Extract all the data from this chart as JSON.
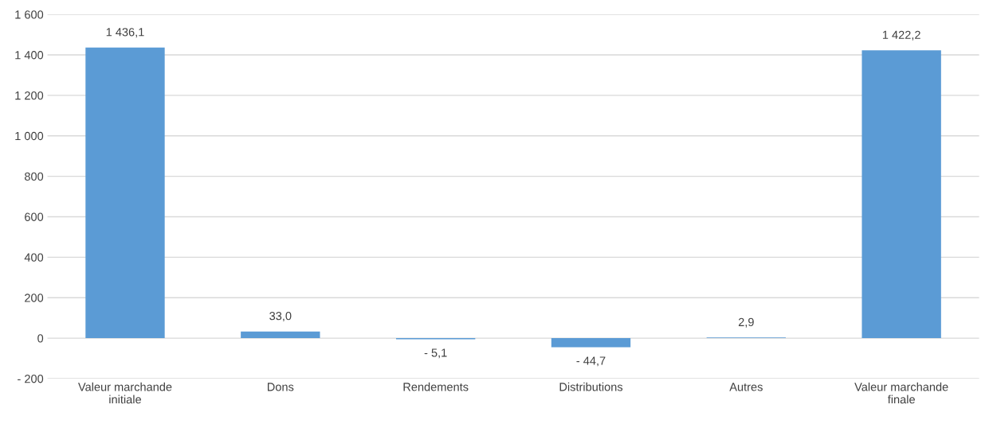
{
  "chart_data": {
    "type": "bar",
    "categories": [
      "Valeur marchande\ninitiale",
      "Dons",
      "Rendements",
      "Distributions",
      "Autres",
      "Valeur marchande\nfinale"
    ],
    "values": [
      1436.1,
      33.0,
      -5.1,
      -44.7,
      2.9,
      1422.2
    ],
    "value_labels": [
      "1 436,1",
      "33,0",
      "- 5,1",
      "- 44,7",
      "2,9",
      "1 422,2"
    ],
    "color": "#5b9bd5",
    "ylim": [
      -200,
      1600
    ],
    "yticks": [
      {
        "value": -200,
        "label": "- 200"
      },
      {
        "value": 0,
        "label": "0"
      },
      {
        "value": 200,
        "label": "200"
      },
      {
        "value": 400,
        "label": "400"
      },
      {
        "value": 600,
        "label": "600"
      },
      {
        "value": 800,
        "label": "800"
      },
      {
        "value": 1000,
        "label": "1 000"
      },
      {
        "value": 1200,
        "label": "1 200"
      },
      {
        "value": 1400,
        "label": "1 400"
      },
      {
        "value": 1600,
        "label": "1 600"
      }
    ],
    "grid": "y"
  }
}
